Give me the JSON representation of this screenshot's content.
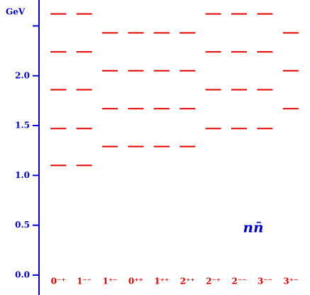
{
  "chart_data": {
    "type": "levels",
    "ylabel": "GeV",
    "annotation": "nn̄",
    "categories": [
      "0⁻⁺",
      "1⁻⁻",
      "1⁺⁻",
      "0⁺⁺",
      "1⁺⁺",
      "2⁺⁺",
      "2⁻⁺",
      "2⁻⁻",
      "3⁻⁻",
      "3⁺⁻"
    ],
    "levels": [
      [
        1.1,
        1.47,
        1.86,
        2.24,
        2.62
      ],
      [
        1.1,
        1.47,
        1.86,
        2.24,
        2.62
      ],
      [
        1.29,
        1.67,
        2.05,
        2.43
      ],
      [
        1.29,
        1.67,
        2.05,
        2.43
      ],
      [
        1.29,
        1.67,
        2.05,
        2.43
      ],
      [
        1.29,
        1.67,
        2.05,
        2.43
      ],
      [
        1.47,
        1.86,
        2.24,
        2.62
      ],
      [
        1.47,
        1.86,
        2.24,
        2.62
      ],
      [
        1.47,
        1.86,
        2.24,
        2.62
      ],
      [
        1.67,
        2.05,
        2.43
      ]
    ],
    "color": "#e00000",
    "axis_color": "#0000cc",
    "ylim": [
      -0.2,
      2.76
    ],
    "yticks": [
      {
        "value": 0,
        "label": "0.0"
      },
      {
        "value": 0.5,
        "label": "0.5"
      },
      {
        "value": 1,
        "label": "1.0"
      },
      {
        "value": 1.5,
        "label": "1.5"
      },
      {
        "value": 2,
        "label": "2.0"
      },
      {
        "value": 2.5,
        "label": null
      }
    ]
  }
}
